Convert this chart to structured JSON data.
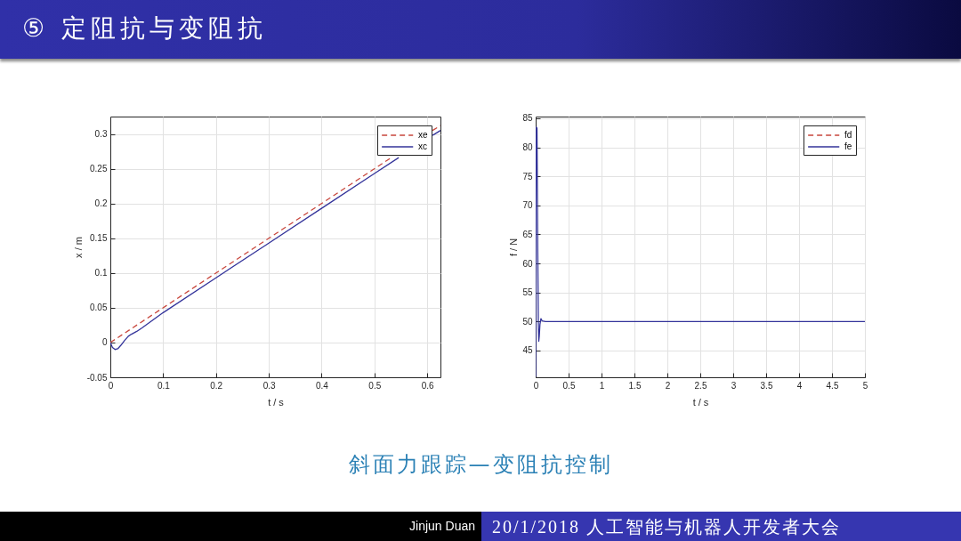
{
  "chart_data": [
    {
      "type": "other",
      "title": "⑤ 定阻抗与变阻抗",
      "annotations": [
        "斜面力跟踪—变阻抗控制",
        "Jinjun Duan",
        "20/1/2018 人工智能与机器人开发者大会"
      ]
    },
    {
      "type": "line",
      "xlabel": "t / s",
      "ylabel": "x / m",
      "xlim": [
        0,
        0.625
      ],
      "ylim": [
        -0.05,
        0.325
      ],
      "xticks": [
        0,
        0.1,
        0.2,
        0.3,
        0.4,
        0.5,
        0.6
      ],
      "yticks": [
        -0.05,
        0,
        0.05,
        0.1,
        0.15,
        0.2,
        0.25,
        0.3
      ],
      "grid": true,
      "legend": "top right",
      "series": [
        {
          "name": "xe",
          "color": "#c8463c",
          "line_style": "dashed",
          "x": [
            0,
            0.532,
            0.57,
            0.61,
            0.625
          ],
          "values": [
            0,
            0.266,
            null,
            0.305,
            0.312
          ]
        },
        {
          "name": "xc",
          "color": "#33339a",
          "line_style": "solid",
          "x": [
            0,
            0.004,
            0.009,
            0.014,
            0.02,
            0.027,
            0.034,
            0.04,
            0.05,
            0.06,
            0.1,
            0.2,
            0.3,
            0.4,
            0.5,
            0.546,
            0.58,
            0.61,
            0.625
          ],
          "values": [
            0,
            -0.007,
            -0.01,
            -0.009,
            -0.004,
            0.003,
            0.009,
            0.012,
            0.016,
            0.021,
            0.043,
            0.093,
            0.143,
            0.193,
            0.243,
            0.266,
            null,
            0.298,
            0.305
          ]
        }
      ]
    },
    {
      "type": "line",
      "xlabel": "t / s",
      "ylabel": "f / N",
      "xlim": [
        0,
        5
      ],
      "ylim": [
        40.4,
        85.3
      ],
      "xticks": [
        0,
        0.5,
        1,
        1.5,
        2,
        2.5,
        3,
        3.5,
        4,
        4.5,
        5
      ],
      "yticks": [
        45,
        50,
        55,
        60,
        65,
        70,
        75,
        80,
        85
      ],
      "grid": true,
      "legend": "top right",
      "series": [
        {
          "name": "fd",
          "color": "#c8463c",
          "line_style": "dashed"
        },
        {
          "name": "fe",
          "color": "#33339a",
          "line_style": "solid",
          "x": [
            0,
            0.005,
            0.01,
            0.02,
            0.03,
            0.04,
            0.047,
            0.055,
            0.065,
            0.08,
            0.1,
            0.15,
            5
          ],
          "values": [
            40.5,
            70,
            83.5,
            83.3,
            65,
            50,
            46.6,
            47.5,
            49.5,
            50.5,
            50.1,
            50,
            50
          ]
        }
      ]
    }
  ]
}
